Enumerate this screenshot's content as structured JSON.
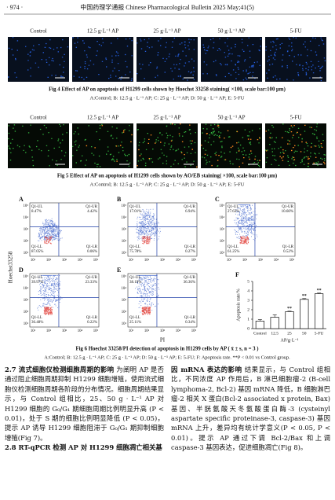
{
  "header": {
    "page": "· 974 ·",
    "journal": "中国药理学通报  Chinese Pharmacological Bulletin  2025 May;41(5)"
  },
  "figure4": {
    "labels": [
      "Control",
      "12.5 g·L⁻¹ AP",
      "25 g·L⁻¹ AP",
      "50 g·L⁻¹ AP",
      "5-FU"
    ],
    "caption": "Fig 4   Effect of AP on apoptosis of H1299 cells shown by Hoechst 33258 staining( ×100, scale bar:100 μm)",
    "legend": "A:Control; B: 12.5 g · L⁻¹ AP; C: 25 g · L⁻¹ AP; D: 50 g · L⁻¹ AP; E: 5-FU"
  },
  "figure5": {
    "labels": [
      "Control",
      "12.5 g·L⁻¹ AP",
      "25 g·L⁻¹ AP",
      "50 g·L⁻¹ AP",
      "5-FU"
    ],
    "caption": "Fig 5   Effect of AP on apoptosis of H1299 cells shown by AO/EB staining( ×100, scale bar:100 μm)",
    "legend": "A:Control; B: 12.5 g · L⁻¹ AP; C: 25 g · L⁻¹ AP; D: 50 g · L⁻¹ AP; E: 5-FU"
  },
  "figure6": {
    "y_label": "Hoechst33258",
    "x_label": "PI",
    "axis_ticks": [
      "10¹",
      "10²",
      "10³",
      "10⁴",
      "10⁵"
    ],
    "panels": [
      {
        "letter": "A",
        "quadrants": [
          [
            "Q1-UL",
            "8.47%"
          ],
          [
            "Q1-UR",
            "4.42%"
          ],
          [
            "Q1-LL",
            "87.05%"
          ],
          [
            "Q1-LR",
            "0.06%"
          ]
        ]
      },
      {
        "letter": "B",
        "quadrants": [
          [
            "Q1-UL",
            "17.01%"
          ],
          [
            "Q1-UR",
            "6.94%"
          ],
          [
            "Q1-LL",
            "75.78%"
          ],
          [
            "Q1-LR",
            "0.27%"
          ]
        ]
      },
      {
        "letter": "C",
        "quadrants": [
          [
            "Q1-UL",
            "27.63%"
          ],
          [
            "Q1-UR",
            "10.60%"
          ],
          [
            "Q1-LL",
            "61.25%"
          ],
          [
            "Q1-LR",
            "0.52%"
          ]
        ]
      },
      {
        "letter": "D",
        "quadrants": [
          [
            "Q1-UL",
            "39.97%"
          ],
          [
            "Q1-UR",
            "23.33%"
          ],
          [
            "Q1-LL",
            "36.48%"
          ],
          [
            "Q1-LR",
            "0.22%"
          ]
        ]
      },
      {
        "letter": "E",
        "quadrants": [
          [
            "Q1-UL",
            "38.19%"
          ],
          [
            "Q1-UR",
            "36.36%"
          ],
          [
            "Q1-LL",
            "25.11%"
          ],
          [
            "Q1-LR",
            "0.34%"
          ]
        ]
      }
    ],
    "chart": {
      "type": "bar",
      "letter": "F",
      "y_label": "Apoptosis rate/%",
      "x_label": "AP/g·L⁻¹",
      "categories": [
        "Control",
        "12.5",
        "25",
        "50",
        "5-FU"
      ],
      "values": [
        0.8,
        1.2,
        1.8,
        3.1,
        3.7
      ],
      "errors": [
        0.15,
        0.25,
        0.05,
        0.08,
        0.07
      ],
      "significance": [
        null,
        null,
        "**",
        "**",
        "**"
      ],
      "ylim": [
        0,
        5
      ],
      "yticks": [
        0,
        1,
        2,
        3,
        4,
        5
      ],
      "color": "#ffffff"
    },
    "caption": "Fig 6   Hoechst 33258/PI detection of apoptosis in H1299 cells by AP ( x̄ ± s, n = 3 )",
    "legend": "A:Control; B: 12.5 g · L⁻¹ AP; C: 25 g · L⁻¹ AP; D: 50 g · L⁻¹ AP; E: 5-FU; F: Apoptosis rate. **P < 0.01 vs Control group."
  },
  "body": {
    "section_27_heading": "2.7  流式细胞仪检测细胞周期的影响",
    "section_27_text": "  为阐明 AP 是否通过阻止细胞周期抑制 H1299 细胞增殖，使用流式细胞仪检测细胞周期各阶段的分布情况。细胞周期结果显示，与 Control 组相比，25、50 g · L⁻¹ AP 对 H1299 细胞的 G₀/G₁ 期细胞周期比例明显升高 (P < 0.01)，处于 S 期的细胞比例明显降低 (P < 0.05)，提示 AP 诱导 H1299 细胞阻滞于 G₀/G₁ 期抑制细胞增殖(Fig 7)。",
    "section_28_heading": "2.8  RT-qPCR 检测 AP 对 H1299 细胞凋亡相关基",
    "right_heading": "因 mRNA 表达的影响",
    "right_text": "  结果显示，与 Control 组相比，不同浓度 AP 作用后，B 淋巴细胞瘤-2 (B-cell lymphoma-2, Bcl-2) 基因 mRNA 降低，B 细胞淋巴瘤-2 相关 X 蛋白(Bcl-2 associated x protein, Bax)基因、半胱氨酸天冬氨酸蛋白酶-3 (cysteinyl aspartate specific proteinase-3, caspase-3) 基因 mRNA 上升，差异均有统计学意义(P < 0.05, P < 0.01)。提示 AP 通过下调 Bcl-2/Bax 和上调 caspase-3 基因表达，促进细胞凋亡(Fig 8)。"
  }
}
